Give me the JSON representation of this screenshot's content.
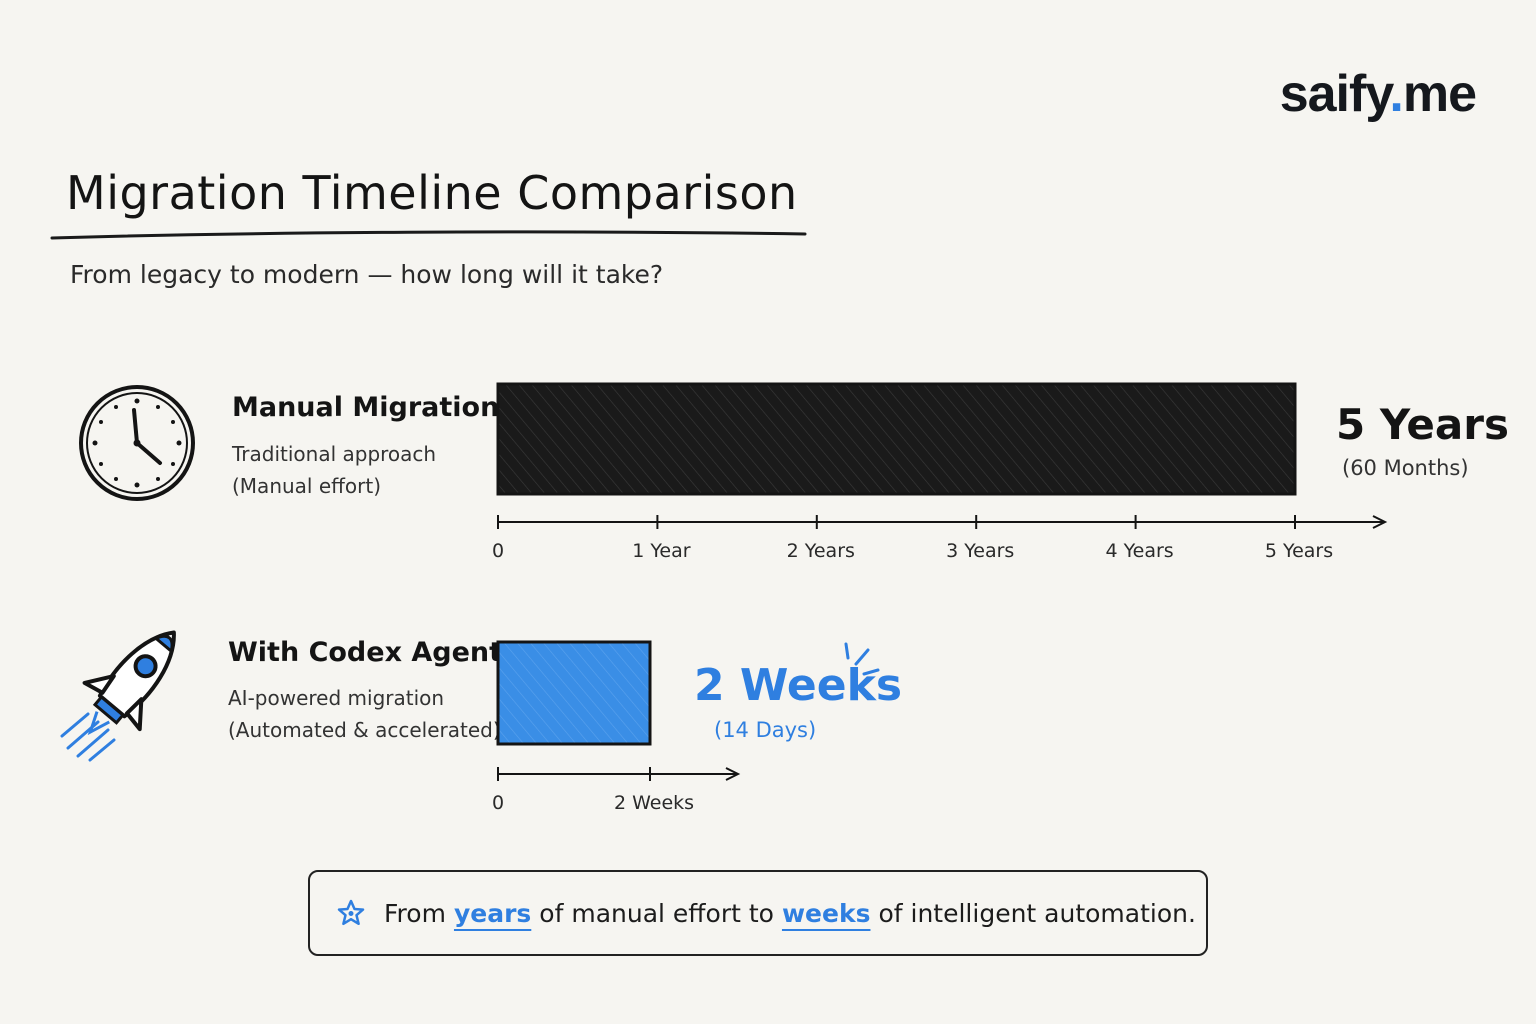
{
  "brand": {
    "name": "saify",
    "dot": ".",
    "tld": "me"
  },
  "title": "Migration Timeline Comparison",
  "subtitle": "From legacy to modern — how long will it take?",
  "manual": {
    "title": "Manual Migration",
    "desc_1": "Traditional approach",
    "desc_2": "(Manual effort)",
    "value": "5 Years",
    "value_sub": "(60 Months)"
  },
  "codex": {
    "title": "With Codex Agent",
    "desc_1": "AI-powered migration",
    "desc_2": "(Automated & accelerated)",
    "value": "2 Weeks",
    "value_sub": "(14 Days)"
  },
  "footer": {
    "part1": "From",
    "hl1": "years",
    "part2": "of manual effort to",
    "hl2": "weeks",
    "part3": "of intelligent automation."
  },
  "colors": {
    "manual_bar": "#1a1a1a",
    "codex_bar": "#3a8ee6",
    "accent": "#2f7fe0"
  },
  "icons": {
    "manual": "clock-icon",
    "codex": "rocket-icon",
    "footer": "star-icon"
  },
  "chart_data": [
    {
      "type": "bar",
      "orientation": "horizontal",
      "categories": [
        "Manual Migration"
      ],
      "values": [
        5
      ],
      "unit": "years",
      "xlim": [
        0,
        5
      ],
      "xticks": [
        "0",
        "1 Year",
        "2 Years",
        "3 Years",
        "4 Years",
        "5 Years"
      ]
    },
    {
      "type": "bar",
      "orientation": "horizontal",
      "categories": [
        "With Codex Agent"
      ],
      "values": [
        2
      ],
      "unit": "weeks",
      "xlim": [
        0,
        2
      ],
      "xticks": [
        "0",
        "2 Weeks"
      ]
    }
  ]
}
